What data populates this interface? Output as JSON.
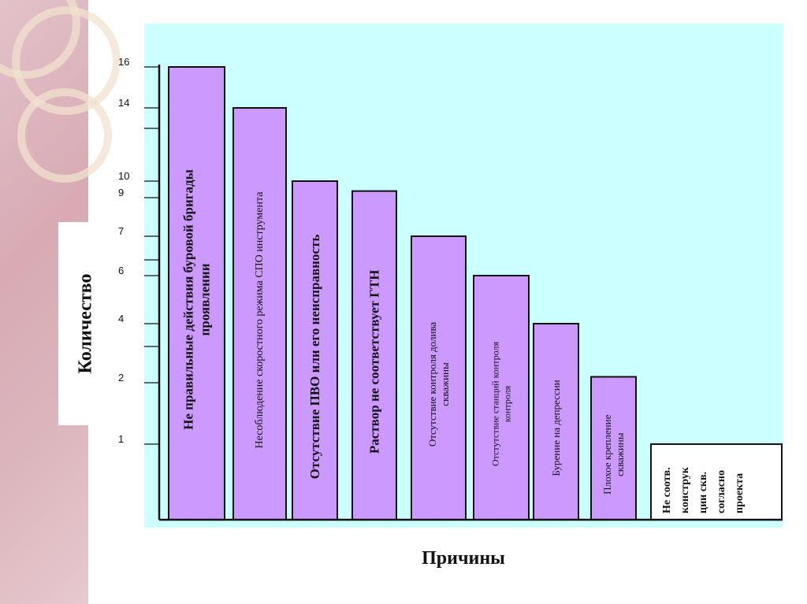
{
  "chart_data": {
    "type": "bar",
    "xlabel": "Причины",
    "ylabel": "Количество",
    "ytick_labels": [
      "1",
      "2",
      "4",
      "6",
      "7",
      "9",
      "10",
      "14",
      "16"
    ],
    "categories": [
      "Не правильные действия буровой бригады проявлении",
      "Несоблюдение скоростного режима СПО инструмента",
      "Отсутствие ПВО или его неисправность",
      "Раствор не соответствует ГТН",
      "Отсутствие контроля долива скважины",
      "Отсутствие станций контроля контроля",
      "Бурение на депрессии",
      "Плохое крепление скважины",
      "Не соотв. конструк ции скв. согласно проекта"
    ],
    "values": [
      16,
      14,
      10,
      9.4,
      7,
      6,
      4,
      2.2,
      1
    ],
    "colors": {
      "bar_fill": "#cc99ff",
      "bar_stroke": "#111111",
      "plot_background": "#ccffff"
    }
  }
}
